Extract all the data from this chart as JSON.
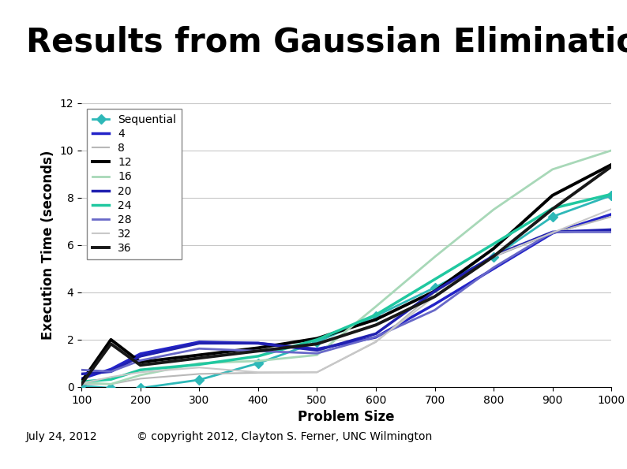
{
  "title": "Results from Gaussian Elimination",
  "xlabel": "Problem Size",
  "ylabel": "Execution Time (seconds)",
  "xlim": [
    100,
    1000
  ],
  "ylim": [
    0,
    12
  ],
  "xticks": [
    100,
    200,
    300,
    400,
    500,
    600,
    700,
    800,
    900,
    1000
  ],
  "yticks": [
    0,
    2,
    4,
    6,
    8,
    10,
    12
  ],
  "x_values": [
    100,
    150,
    200,
    300,
    400,
    500,
    600,
    700,
    800,
    900,
    1000
  ],
  "series": [
    {
      "label": "Sequential",
      "color": "#2eb8b8",
      "marker": "D",
      "linewidth": 2.0,
      "data": [
        0.05,
        -0.05,
        -0.05,
        0.3,
        1.0,
        1.9,
        3.0,
        4.2,
        5.5,
        7.2,
        8.1
      ]
    },
    {
      "label": "4",
      "color": "#2323c8",
      "marker": null,
      "linewidth": 2.5,
      "data": [
        0.35,
        0.75,
        1.4,
        1.9,
        1.85,
        1.6,
        2.1,
        3.5,
        5.0,
        6.5,
        7.3
      ]
    },
    {
      "label": "8",
      "color": "#b8b8b8",
      "marker": null,
      "linewidth": 1.5,
      "data": [
        0.12,
        0.12,
        0.35,
        0.55,
        0.6,
        0.62,
        1.9,
        4.0,
        5.5,
        6.5,
        7.2
      ]
    },
    {
      "label": "12",
      "color": "#000000",
      "marker": null,
      "linewidth": 2.8,
      "data": [
        0.22,
        2.0,
        1.05,
        1.35,
        1.65,
        2.05,
        2.85,
        4.05,
        5.85,
        8.1,
        9.4
      ]
    },
    {
      "label": "16",
      "color": "#a8d8b8",
      "marker": null,
      "linewidth": 2.0,
      "data": [
        0.18,
        0.12,
        0.5,
        1.0,
        1.1,
        1.35,
        3.4,
        5.5,
        7.5,
        9.2,
        10.0
      ]
    },
    {
      "label": "20",
      "color": "#2020b0",
      "marker": null,
      "linewidth": 2.5,
      "data": [
        0.55,
        0.65,
        1.3,
        1.85,
        1.85,
        1.55,
        2.25,
        4.05,
        5.55,
        6.55,
        6.65
      ]
    },
    {
      "label": "24",
      "color": "#20c8a0",
      "marker": null,
      "linewidth": 2.5,
      "data": [
        0.22,
        0.32,
        0.72,
        0.95,
        1.3,
        2.0,
        3.05,
        4.55,
        6.05,
        7.55,
        8.15
      ]
    },
    {
      "label": "28",
      "color": "#6868c8",
      "marker": null,
      "linewidth": 2.0,
      "data": [
        0.72,
        0.65,
        1.12,
        1.62,
        1.52,
        1.42,
        2.12,
        3.25,
        5.05,
        6.55,
        6.55
      ]
    },
    {
      "label": "32",
      "color": "#c8c8c8",
      "marker": null,
      "linewidth": 1.5,
      "data": [
        0.15,
        0.42,
        0.62,
        0.82,
        0.62,
        0.62,
        1.92,
        3.82,
        5.52,
        6.52,
        7.52
      ]
    },
    {
      "label": "36",
      "color": "#181818",
      "marker": null,
      "linewidth": 2.8,
      "data": [
        0.12,
        1.82,
        0.92,
        1.22,
        1.52,
        1.82,
        2.62,
        3.82,
        5.52,
        7.52,
        9.32
      ]
    }
  ],
  "background_color": "#ffffff",
  "plot_bg_color": "#ffffff",
  "grid_color": "#c8c8c8",
  "title_color": "#000000",
  "title_fontsize": 30,
  "axis_label_fontsize": 12,
  "tick_fontsize": 10,
  "legend_fontsize": 10,
  "footer_text": "© copyright 2012, Clayton S. Ferner, UNC Wilmington",
  "footer_date": "July 24, 2012",
  "teal_bar_color": "#007878",
  "left_bar_color": "#1a2a80",
  "top_sq1_color": "#007878",
  "top_sq2_color": "#1a2a80",
  "footer_line_color": "#800080",
  "red_accent_color": "#8b0000",
  "yellow_accent_color": "#d4b800"
}
